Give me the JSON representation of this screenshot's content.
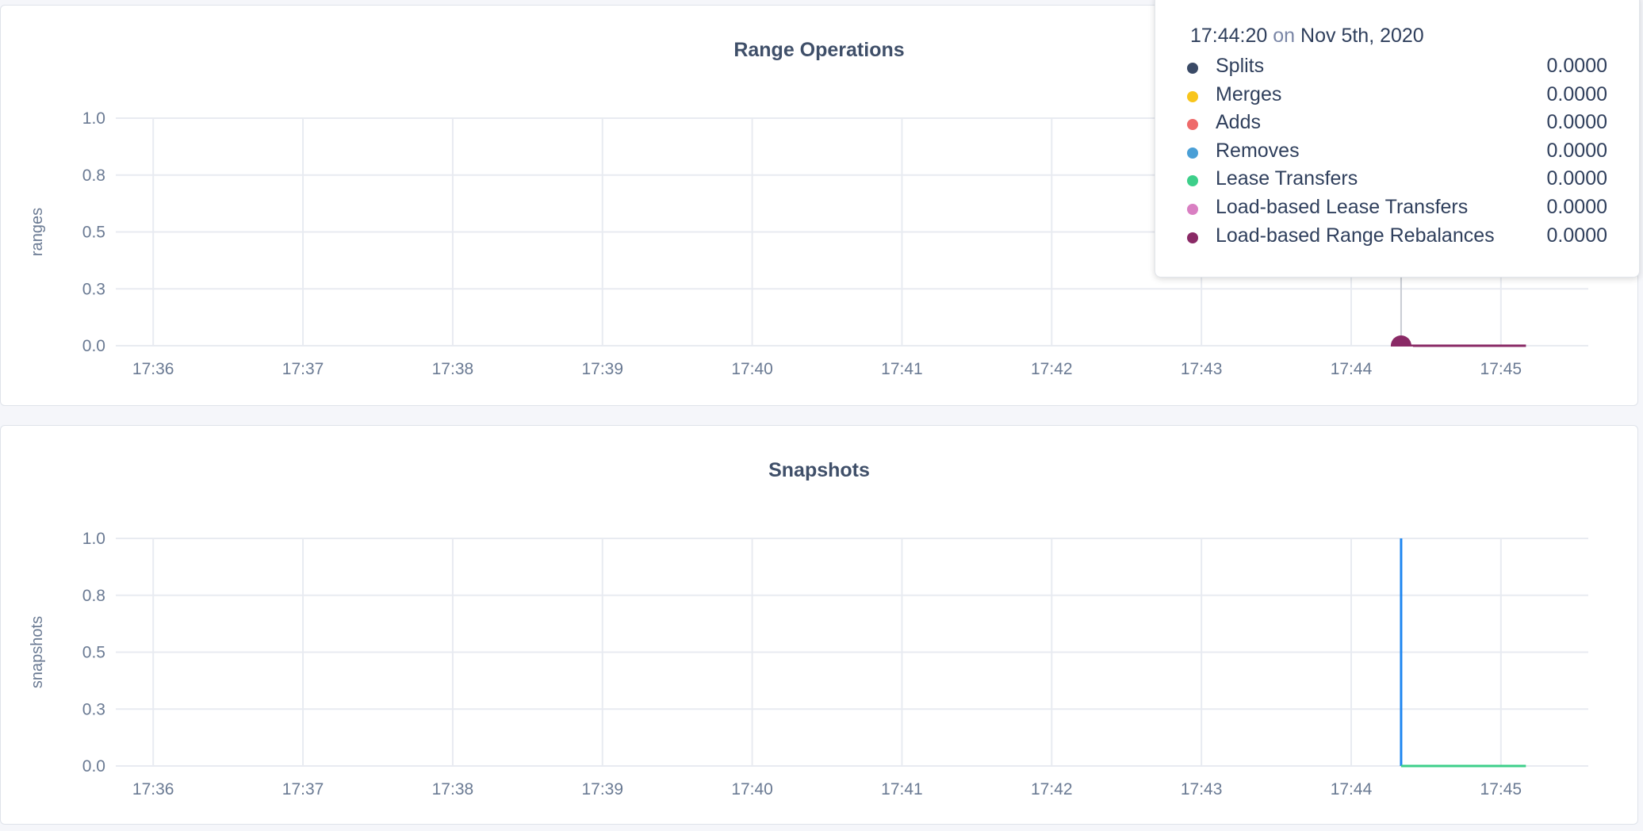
{
  "chart_data": [
    {
      "type": "line",
      "title": "Range Operations",
      "ylabel": "ranges",
      "ylim": [
        0,
        1
      ],
      "yticks": [
        "0.0",
        "0.3",
        "0.5",
        "0.8",
        "1.0"
      ],
      "ytick_values": [
        0,
        0.25,
        0.5,
        0.75,
        1
      ],
      "xticks": [
        "17:36",
        "17:37",
        "17:38",
        "17:39",
        "17:40",
        "17:41",
        "17:42",
        "17:43",
        "17:44",
        "17:45"
      ],
      "xlim": [
        "17:35:45",
        "17:45:35"
      ],
      "grid": true,
      "series": [
        {
          "name": "Splits",
          "color": "#3a4a66",
          "x": [
            "17:44:20",
            "17:45:10"
          ],
          "y": [
            0,
            0
          ]
        },
        {
          "name": "Merges",
          "color": "#f8c51c",
          "x": [
            "17:44:20",
            "17:45:10"
          ],
          "y": [
            0,
            0
          ]
        },
        {
          "name": "Adds",
          "color": "#ee6a6a",
          "x": [
            "17:44:20",
            "17:45:10"
          ],
          "y": [
            0,
            0
          ]
        },
        {
          "name": "Removes",
          "color": "#4a9fd6",
          "x": [
            "17:44:20",
            "17:45:10"
          ],
          "y": [
            0,
            0
          ]
        },
        {
          "name": "Lease Transfers",
          "color": "#3dcf8a",
          "x": [
            "17:44:20",
            "17:45:10"
          ],
          "y": [
            0,
            0
          ]
        },
        {
          "name": "Load-based Lease Transfers",
          "color": "#d97fc2",
          "x": [
            "17:44:20",
            "17:45:10"
          ],
          "y": [
            0,
            0
          ]
        },
        {
          "name": "Load-based Range Rebalances",
          "color": "#8a2a66",
          "x": [
            "17:44:20",
            "17:45:10"
          ],
          "y": [
            0,
            0
          ]
        }
      ],
      "hover": "17:44:20",
      "tooltip": {
        "time": "17:44:20",
        "on": "on",
        "date": "Nov 5th, 2020",
        "rows": [
          {
            "name": "Splits",
            "value": "0.0000",
            "color": "#3a4a66"
          },
          {
            "name": "Merges",
            "value": "0.0000",
            "color": "#f8c51c"
          },
          {
            "name": "Adds",
            "value": "0.0000",
            "color": "#ee6a6a"
          },
          {
            "name": "Removes",
            "value": "0.0000",
            "color": "#4a9fd6"
          },
          {
            "name": "Lease Transfers",
            "value": "0.0000",
            "color": "#3dcf8a"
          },
          {
            "name": "Load-based Lease Transfers",
            "value": "0.0000",
            "color": "#d97fc2"
          },
          {
            "name": "Load-based Range Rebalances",
            "value": "0.0000",
            "color": "#8a2a66"
          }
        ]
      }
    },
    {
      "type": "line",
      "title": "Snapshots",
      "ylabel": "snapshots",
      "ylim": [
        0,
        1
      ],
      "yticks": [
        "0.0",
        "0.3",
        "0.5",
        "0.8",
        "1.0"
      ],
      "ytick_values": [
        0,
        0.25,
        0.5,
        0.75,
        1
      ],
      "xticks": [
        "17:36",
        "17:37",
        "17:38",
        "17:39",
        "17:40",
        "17:41",
        "17:42",
        "17:43",
        "17:44",
        "17:45"
      ],
      "xlim": [
        "17:35:45",
        "17:45:35"
      ],
      "grid": true,
      "series": [
        {
          "color": "#1f86f0",
          "x": [
            "17:44:20",
            "17:44:20"
          ],
          "y": [
            1,
            0
          ]
        },
        {
          "color": "#3dcf8a",
          "x": [
            "17:44:20",
            "17:45:10"
          ],
          "y": [
            0,
            0
          ]
        }
      ]
    }
  ]
}
